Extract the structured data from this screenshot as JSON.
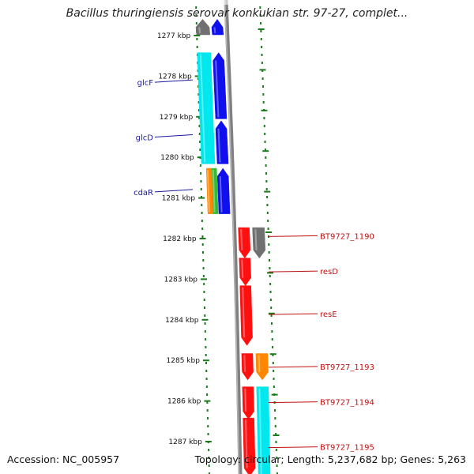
{
  "title": "Bacillus thuringiensis serovar konkukian str. 97-27, complet...",
  "footer": {
    "accession": "Accession: NC_005957",
    "topology": "Topology: circular; Length: 5,237,682 bp; Genes: 5,263"
  },
  "colors": {
    "background": "#ffffff",
    "backbone": "#808080",
    "tick": "#1a7a1a",
    "label_left": "#1a1aa0",
    "label_right": "#c01010",
    "gene_gray": "#707070",
    "gene_blue": "#1010ee",
    "gene_cyan": "#00e8ee",
    "gene_orange": "#ff8800",
    "gene_green": "#33bb33",
    "gene_red": "#ff1010"
  },
  "ruler": {
    "unit": "kbp",
    "ticks": [
      {
        "kbp": 1277,
        "label": "1277 kbp"
      },
      {
        "kbp": 1278,
        "label": "1278 kbp"
      },
      {
        "kbp": 1279,
        "label": "1279 kbp"
      },
      {
        "kbp": 1280,
        "label": "1280 kbp"
      },
      {
        "kbp": 1281,
        "label": "1281 kbp"
      },
      {
        "kbp": 1282,
        "label": "1282 kbp"
      },
      {
        "kbp": 1283,
        "label": "1283 kbp"
      },
      {
        "kbp": 1284,
        "label": "1284 kbp"
      },
      {
        "kbp": 1285,
        "label": "1285 kbp"
      },
      {
        "kbp": 1286,
        "label": "1286 kbp"
      },
      {
        "kbp": 1287,
        "label": "1287 kbp"
      }
    ]
  },
  "features": [
    {
      "id": "f-gray-left",
      "start": 1276.6,
      "end": 1276.98,
      "lane": "outer-left",
      "direction": "up",
      "color": "gene_gray",
      "name": ""
    },
    {
      "id": "f-blue-top",
      "start": 1276.6,
      "end": 1276.98,
      "lane": "inner-left",
      "direction": "up",
      "color": "gene_blue",
      "name": ""
    },
    {
      "id": "f-glcF",
      "start": 1277.42,
      "end": 1279.05,
      "lane": "inner-left",
      "direction": "up",
      "color": "gene_blue",
      "name": "glcF"
    },
    {
      "id": "f-glcF-cyan",
      "start": 1277.42,
      "end": 1280.16,
      "lane": "outer-left",
      "direction": "none",
      "color": "gene_cyan",
      "name": ""
    },
    {
      "id": "f-glcD",
      "start": 1279.1,
      "end": 1280.16,
      "lane": "inner-left",
      "direction": "up",
      "color": "gene_blue",
      "name": "glcD"
    },
    {
      "id": "f-cdaR-orange",
      "start": 1280.27,
      "end": 1281.39,
      "lane": "outer-left",
      "direction": "none",
      "color": "gene_orange",
      "name": ""
    },
    {
      "id": "f-cdaR-green",
      "start": 1280.27,
      "end": 1281.39,
      "lane": "mid-left",
      "direction": "none",
      "color": "gene_green",
      "name": ""
    },
    {
      "id": "f-cdaR",
      "start": 1280.27,
      "end": 1281.39,
      "lane": "inner-left",
      "direction": "up",
      "color": "gene_blue",
      "name": "cdaR"
    },
    {
      "id": "f-BT9727_1190",
      "start": 1281.73,
      "end": 1282.48,
      "lane": "outer-right",
      "direction": "down",
      "color": "gene_gray",
      "name": "BT9727_1190"
    },
    {
      "id": "f-1190-red",
      "start": 1281.73,
      "end": 1282.48,
      "lane": "inner-right",
      "direction": "down",
      "color": "gene_red",
      "name": ""
    },
    {
      "id": "f-resD",
      "start": 1282.48,
      "end": 1283.16,
      "lane": "inner-right",
      "direction": "down",
      "color": "gene_red",
      "name": "resD"
    },
    {
      "id": "f-resE",
      "start": 1283.16,
      "end": 1284.63,
      "lane": "inner-right",
      "direction": "down",
      "color": "gene_red",
      "name": "resE"
    },
    {
      "id": "f-BT9727_1193",
      "start": 1284.83,
      "end": 1285.48,
      "lane": "outer-right",
      "direction": "down",
      "color": "gene_orange",
      "name": "BT9727_1193"
    },
    {
      "id": "f-1193-red",
      "start": 1284.83,
      "end": 1285.48,
      "lane": "inner-right",
      "direction": "down",
      "color": "gene_red",
      "name": ""
    },
    {
      "id": "f-BT9727_1194",
      "start": 1285.65,
      "end": 1286.45,
      "lane": "inner-right",
      "direction": "down",
      "color": "gene_red",
      "name": "BT9727_1194"
    },
    {
      "id": "f-1194-cyan",
      "start": 1285.65,
      "end": 1287.85,
      "lane": "outer-right",
      "direction": "none",
      "color": "gene_cyan",
      "name": ""
    },
    {
      "id": "f-BT9727_1195",
      "start": 1286.42,
      "end": 1287.85,
      "lane": "inner-right",
      "direction": "down",
      "color": "gene_red",
      "name": "BT9727_1195"
    }
  ]
}
